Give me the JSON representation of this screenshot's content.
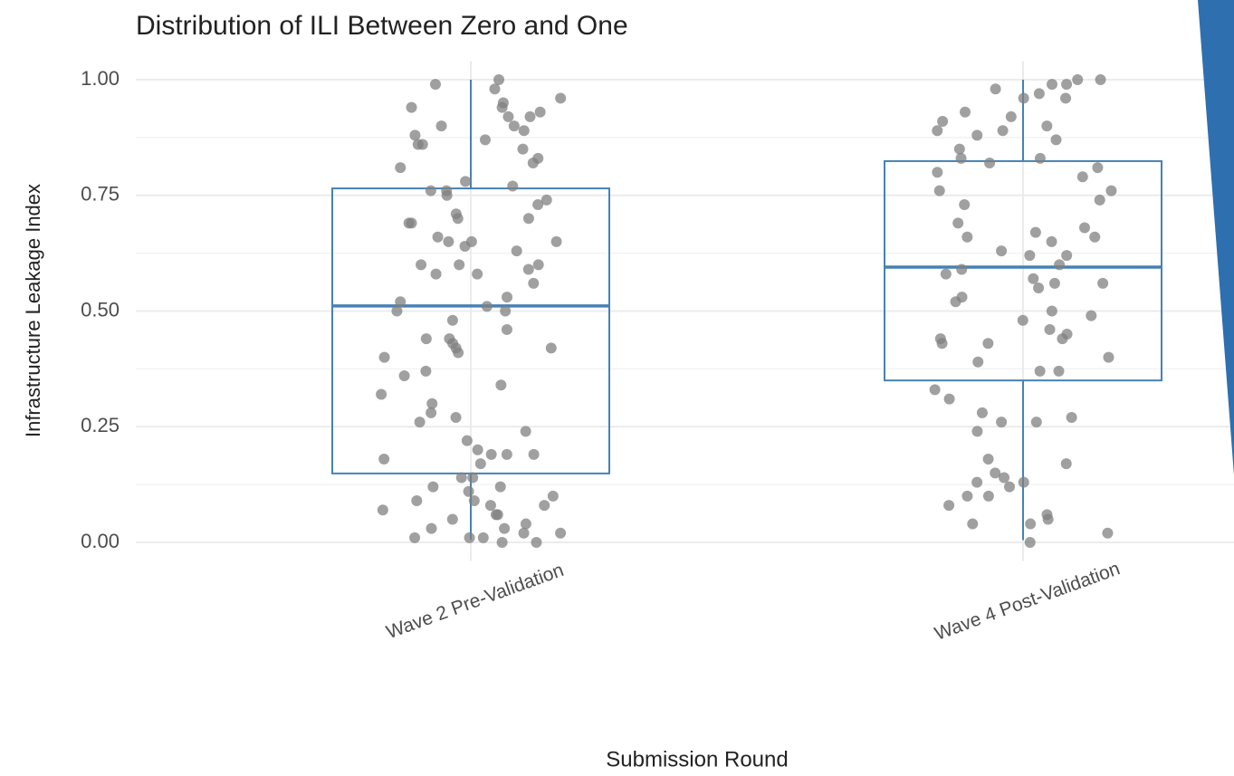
{
  "chart_data": {
    "type": "box",
    "title": "Distribution of ILI Between Zero and One",
    "x_label": "Submission Round",
    "y_label": "Infrastructure Leakage Index",
    "categories": [
      "Wave 2 Pre-Validation",
      "Wave 4 Post-Validation"
    ],
    "boxes": [
      {
        "min": 0.006,
        "q1": 0.149,
        "median": 0.511,
        "q3": 0.765,
        "max": 1.0
      },
      {
        "min": 0.005,
        "q1": 0.35,
        "median": 0.595,
        "q3": 0.824,
        "max": 1.0
      }
    ],
    "points": [
      [
        1.0,
        0.99,
        0.98,
        0.96,
        0.95,
        0.94,
        0.94,
        0.93,
        0.92,
        0.92,
        0.9,
        0.9,
        0.89,
        0.88,
        0.87,
        0.86,
        0.86,
        0.85,
        0.83,
        0.82,
        0.81,
        0.78,
        0.77,
        0.76,
        0.76,
        0.75,
        0.74,
        0.73,
        0.71,
        0.7,
        0.7,
        0.69,
        0.69,
        0.66,
        0.65,
        0.65,
        0.65,
        0.64,
        0.63,
        0.6,
        0.6,
        0.6,
        0.59,
        0.58,
        0.58,
        0.56,
        0.53,
        0.52,
        0.51,
        0.5,
        0.5,
        0.48,
        0.46,
        0.44,
        0.44,
        0.43,
        0.42,
        0.42,
        0.41,
        0.4,
        0.37,
        0.36,
        0.34,
        0.32,
        0.3,
        0.28,
        0.27,
        0.26,
        0.24,
        0.22,
        0.2,
        0.19,
        0.19,
        0.19,
        0.18,
        0.17,
        0.14,
        0.14,
        0.12,
        0.12,
        0.11,
        0.1,
        0.09,
        0.09,
        0.08,
        0.08,
        0.07,
        0.06,
        0.06,
        0.05,
        0.04,
        0.03,
        0.03,
        0.02,
        0.02,
        0.01,
        0.01,
        0.01,
        0.0,
        0.0
      ],
      [
        1.0,
        1.0,
        0.99,
        0.99,
        0.98,
        0.97,
        0.96,
        0.96,
        0.93,
        0.92,
        0.91,
        0.9,
        0.89,
        0.89,
        0.88,
        0.87,
        0.85,
        0.83,
        0.83,
        0.82,
        0.81,
        0.8,
        0.79,
        0.76,
        0.76,
        0.74,
        0.73,
        0.69,
        0.68,
        0.67,
        0.66,
        0.66,
        0.65,
        0.63,
        0.62,
        0.62,
        0.6,
        0.59,
        0.58,
        0.57,
        0.56,
        0.56,
        0.55,
        0.53,
        0.52,
        0.5,
        0.49,
        0.48,
        0.46,
        0.45,
        0.44,
        0.44,
        0.43,
        0.43,
        0.4,
        0.39,
        0.37,
        0.37,
        0.33,
        0.31,
        0.28,
        0.27,
        0.26,
        0.26,
        0.24,
        0.18,
        0.17,
        0.15,
        0.14,
        0.13,
        0.13,
        0.12,
        0.1,
        0.1,
        0.08,
        0.06,
        0.05,
        0.04,
        0.04,
        0.02,
        0.0
      ]
    ],
    "box_color": "#4682b4",
    "point_color": "#808080",
    "ylim": [
      -0.04,
      1.04
    ],
    "yticks": [
      {
        "value": 0,
        "label": "0.00"
      },
      {
        "value": 0.25,
        "label": "0.25"
      },
      {
        "value": 0.5,
        "label": "0.50"
      },
      {
        "value": 0.75,
        "label": "0.75"
      },
      {
        "value": 1,
        "label": "1.00"
      }
    ],
    "yminor": [
      0.125,
      0.375,
      0.625,
      0.875
    ],
    "grid": true
  }
}
